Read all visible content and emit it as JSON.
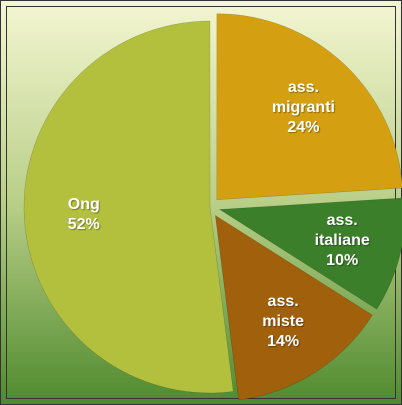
{
  "chart_data": {
    "type": "pie",
    "categories": [
      "ass. migranti",
      "ass. italiane",
      "ass. miste",
      "Ong"
    ],
    "values": [
      24,
      10,
      14,
      52
    ],
    "value_labels": [
      "24%",
      "10%",
      "14%",
      "52%"
    ],
    "colors": [
      "#d4a012",
      "#3c7f2a",
      "#a0600c",
      "#b3c03e"
    ],
    "exploded": [
      true,
      true,
      true,
      false
    ]
  }
}
